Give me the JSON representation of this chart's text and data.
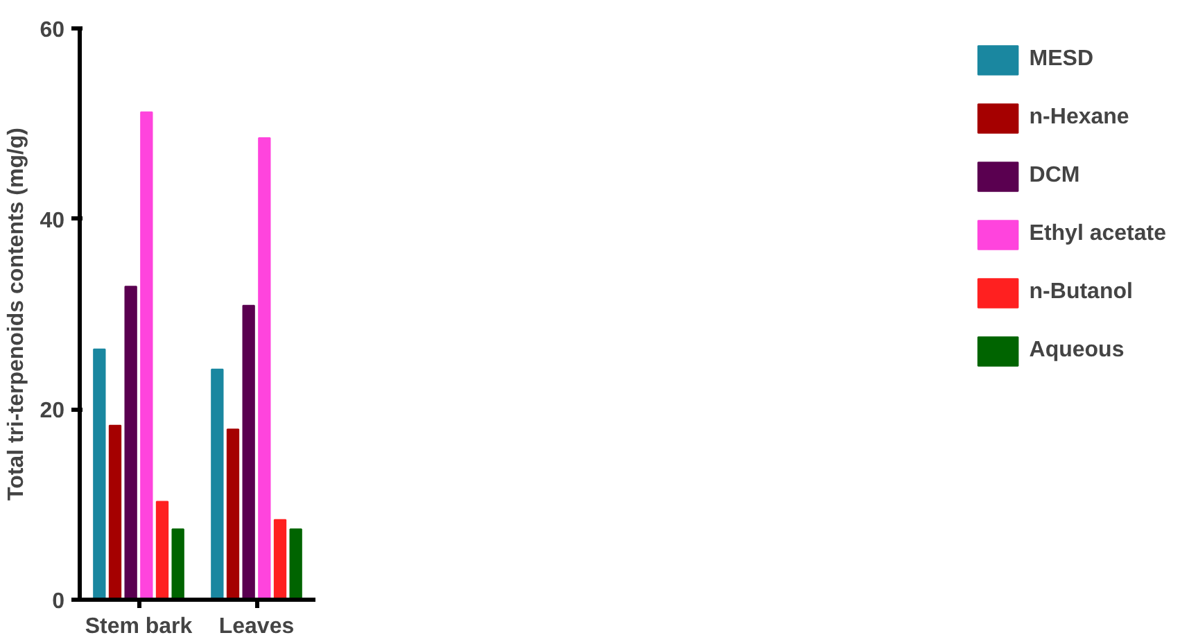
{
  "chart_data": {
    "type": "bar",
    "ylabel": "Total tri-terpenoids contents (mg/g)",
    "categories": [
      "Stem bark",
      "Leaves"
    ],
    "series": [
      {
        "name": "MESD",
        "color": "#1a87a0",
        "values": [
          26.3,
          24.2
        ]
      },
      {
        "name": "n-Hexane",
        "color": "#a50000",
        "values": [
          18.3,
          17.9
        ]
      },
      {
        "name": "DCM",
        "color": "#5a0050",
        "values": [
          32.9,
          30.9
        ]
      },
      {
        "name": "Ethyl acetate",
        "color": "#ff44dd",
        "values": [
          51.2,
          48.5
        ]
      },
      {
        "name": "n-Butanol",
        "color": "#ff2020",
        "values": [
          10.3,
          8.4
        ]
      },
      {
        "name": "Aqueous",
        "color": "#006400",
        "values": [
          7.4,
          7.4
        ]
      }
    ],
    "ylim": [
      0,
      60
    ],
    "yticks": [
      0,
      20,
      40,
      60
    ],
    "grid": false,
    "legend": "right"
  }
}
